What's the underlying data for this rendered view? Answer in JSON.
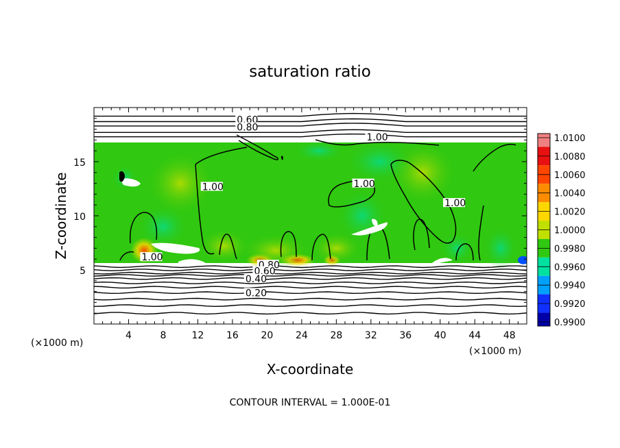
{
  "chart_data": {
    "type": "heatmap",
    "title": "saturation ratio",
    "xlabel": "X-coordinate",
    "ylabel": "Z-coordinate",
    "x_unit": "(×1000 m)",
    "y_unit": "(×1000 m)",
    "xlim": [
      0,
      50
    ],
    "ylim": [
      0,
      20
    ],
    "x_ticks": [
      4,
      8,
      12,
      16,
      20,
      24,
      28,
      32,
      36,
      40,
      44,
      48
    ],
    "y_ticks": [
      5,
      10,
      15
    ],
    "footnote": "CONTOUR INTERVAL = 1.000E-01",
    "colorbar": {
      "levels": [
        "1.0100",
        "1.0080",
        "1.0060",
        "1.0040",
        "1.0020",
        "1.0000",
        "0.9980",
        "0.9960",
        "0.9940",
        "0.9920",
        "0.9900"
      ],
      "colors": [
        "#f08080",
        "#e81010",
        "#ff4500",
        "#ff8c00",
        "#ffd700",
        "#c0e000",
        "#30c810",
        "#00e0a0",
        "#00a0ff",
        "#1030ff",
        "#0000a8",
        "#600080"
      ]
    },
    "contour_labels": [
      {
        "text": "0.60",
        "x": 16.5,
        "z": 18.7
      },
      {
        "text": "0.80",
        "x": 16.5,
        "z": 18.0
      },
      {
        "text": "1.00",
        "x": 31.5,
        "z": 17.1
      },
      {
        "text": "1.00",
        "x": 12.5,
        "z": 12.5
      },
      {
        "text": "1.00",
        "x": 30.0,
        "z": 12.8
      },
      {
        "text": "1.00",
        "x": 40.5,
        "z": 11.0
      },
      {
        "text": "1.00",
        "x": 5.5,
        "z": 6.0
      },
      {
        "text": "0.80",
        "x": 19.0,
        "z": 5.3
      },
      {
        "text": "0.60",
        "x": 18.5,
        "z": 4.7
      },
      {
        "text": "0.40",
        "x": 17.5,
        "z": 4.0
      },
      {
        "text": "0.20",
        "x": 17.5,
        "z": 2.7
      }
    ],
    "contour_lines_z": [
      19.2,
      18.7,
      18.3,
      17.7,
      17.3,
      5.3,
      5.0,
      4.7,
      4.5,
      4.2,
      3.8,
      3.4,
      2.9,
      2.3,
      1.7,
      1.0
    ]
  }
}
